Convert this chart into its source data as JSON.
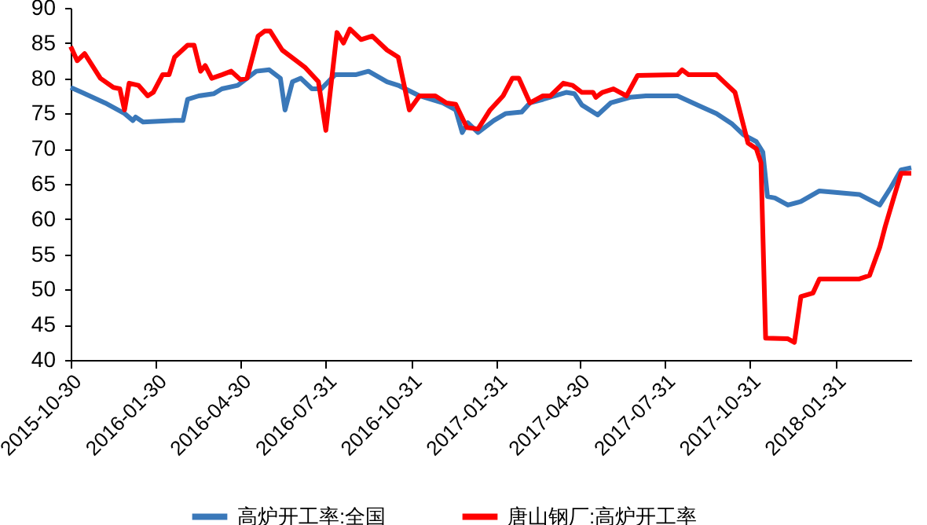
{
  "chart_data": {
    "type": "line",
    "legend": "bottom",
    "grid": false,
    "xlim": [
      "2015-10-30",
      "2018-04-23"
    ],
    "ylim": [
      40,
      90
    ],
    "yticks": [
      40,
      45,
      50,
      55,
      60,
      65,
      70,
      75,
      80,
      85,
      90
    ],
    "xticks": [
      "2015-10-30",
      "2016-01-30",
      "2016-04-30",
      "2016-07-31",
      "2016-10-31",
      "2017-01-31",
      "2017-04-30",
      "2017-07-31",
      "2017-10-31",
      "2018-01-31"
    ],
    "series": [
      {
        "name": "高炉开工率:全国",
        "color": "#3a78b9",
        "x": [
          "2015-10-30",
          "2015-11-11",
          "2015-12-06",
          "2015-12-27",
          "2016-01-05",
          "2016-01-08",
          "2016-01-16",
          "2016-02-19",
          "2016-02-28",
          "2016-03-04",
          "2016-03-16",
          "2016-04-01",
          "2016-04-10",
          "2016-04-27",
          "2016-05-17",
          "2016-05-31",
          "2016-06-12",
          "2016-06-17",
          "2016-06-25",
          "2016-07-04",
          "2016-07-16",
          "2016-07-26",
          "2016-08-10",
          "2016-09-01",
          "2016-09-15",
          "2016-10-05",
          "2016-10-17",
          "2016-11-09",
          "2016-12-04",
          "2016-12-18",
          "2016-12-25",
          "2016-12-31",
          "2017-01-11",
          "2017-01-28",
          "2017-02-10",
          "2017-02-27",
          "2017-03-08",
          "2017-03-22",
          "2017-04-16",
          "2017-04-25",
          "2017-05-03",
          "2017-05-20",
          "2017-06-03",
          "2017-06-24",
          "2017-07-11",
          "2017-08-14",
          "2017-09-08",
          "2017-09-25",
          "2017-10-12",
          "2017-10-24",
          "2017-11-07",
          "2017-11-14",
          "2017-11-19",
          "2017-11-27",
          "2017-12-11",
          "2017-12-25",
          "2018-01-14",
          "2018-01-31",
          "2018-02-26",
          "2018-03-20",
          "2018-04-01",
          "2018-04-12",
          "2018-04-23"
        ],
        "values": [
          78.7,
          78,
          76.5,
          75,
          74,
          74.5,
          73.8,
          74,
          74,
          77,
          77.5,
          77.8,
          78.5,
          79,
          81,
          81.2,
          80,
          75.5,
          79.5,
          80,
          78.5,
          78.5,
          80.5,
          80.5,
          81,
          79.5,
          79,
          77.5,
          76.5,
          75.5,
          72.3,
          73.7,
          72.3,
          74,
          75,
          75.2,
          76.5,
          77,
          78,
          77.8,
          76.2,
          74.8,
          76.5,
          77.3,
          77.5,
          77.5,
          76,
          75,
          73.5,
          72,
          71,
          69.5,
          63.2,
          63,
          62,
          62.5,
          64,
          63.8,
          63.5,
          62,
          64.5,
          67,
          67.3
        ]
      },
      {
        "name": "唐山钢厂:高炉开工率",
        "color": "#ff0000",
        "x": [
          "2015-10-30",
          "2015-11-06",
          "2015-11-14",
          "2015-12-01",
          "2015-12-15",
          "2015-12-22",
          "2015-12-27",
          "2016-01-01",
          "2016-01-11",
          "2016-01-21",
          "2016-01-27",
          "2016-02-06",
          "2016-02-13",
          "2016-02-19",
          "2016-03-04",
          "2016-03-11",
          "2016-03-18",
          "2016-03-23",
          "2016-03-30",
          "2016-04-10",
          "2016-04-20",
          "2016-04-30",
          "2016-05-07",
          "2016-05-19",
          "2016-05-26",
          "2016-06-01",
          "2016-06-14",
          "2016-06-29",
          "2016-07-09",
          "2016-07-23",
          "2016-07-31",
          "2016-08-12",
          "2016-08-19",
          "2016-08-26",
          "2016-09-07",
          "2016-09-19",
          "2016-10-05",
          "2016-10-17",
          "2016-10-29",
          "2016-11-09",
          "2016-11-26",
          "2016-12-08",
          "2016-12-18",
          "2016-12-30",
          "2017-01-11",
          "2017-01-24",
          "2017-02-07",
          "2017-02-17",
          "2017-02-24",
          "2017-03-08",
          "2017-03-22",
          "2017-03-30",
          "2017-04-13",
          "2017-04-23",
          "2017-05-03",
          "2017-05-15",
          "2017-05-18",
          "2017-05-25",
          "2017-06-06",
          "2017-06-20",
          "2017-07-02",
          "2017-08-14",
          "2017-08-19",
          "2017-08-26",
          "2017-09-25",
          "2017-10-03",
          "2017-10-15",
          "2017-10-29",
          "2017-11-07",
          "2017-11-12",
          "2017-11-17",
          "2017-12-11",
          "2017-12-18",
          "2017-12-25",
          "2018-01-07",
          "2018-01-14",
          "2018-02-26",
          "2018-03-09",
          "2018-03-20",
          "2018-03-26",
          "2018-04-04",
          "2018-04-12",
          "2018-04-23"
        ],
        "values": [
          84.5,
          82.5,
          83.5,
          80,
          78.7,
          78.5,
          75.5,
          79.3,
          79,
          77.5,
          78,
          80.5,
          80.5,
          83,
          84.7,
          84.7,
          81,
          81.8,
          80,
          80.5,
          81,
          79.8,
          80,
          86,
          86.7,
          86.7,
          84,
          82.5,
          81.5,
          79.5,
          72.6,
          86.5,
          85,
          87,
          85.5,
          86,
          84,
          83,
          75.5,
          77.5,
          77.5,
          76.5,
          76.3,
          73,
          72.8,
          75.5,
          77.5,
          80,
          80,
          76.5,
          77.5,
          77.5,
          79.3,
          79,
          78,
          78,
          77.3,
          78,
          78.5,
          77.5,
          80.4,
          80.5,
          81.2,
          80.5,
          80.5,
          79.5,
          78,
          70.8,
          70,
          68,
          43.1,
          43,
          42.5,
          49,
          49.5,
          51.5,
          51.5,
          52,
          56,
          59,
          63,
          66.5,
          66.5
        ]
      }
    ]
  }
}
